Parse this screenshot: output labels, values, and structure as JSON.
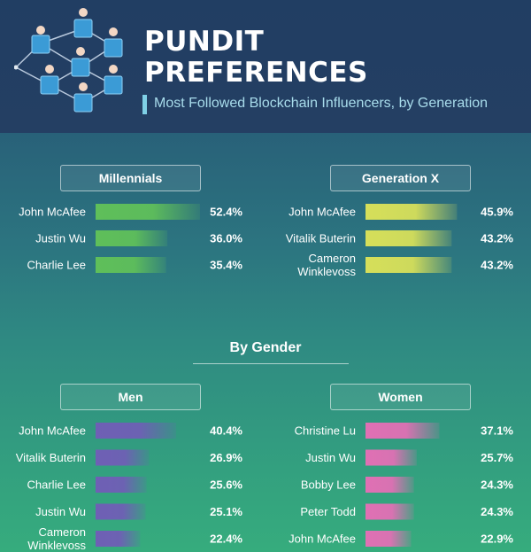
{
  "header": {
    "title_line1": "PUNDIT",
    "title_line2": "PREFERENCES",
    "subtitle": "Most Followed Blockchain Influencers, by Generation"
  },
  "colors": {
    "millennials": "#5fbf5a",
    "generation_x": "#d6df5a",
    "men": "#6f5fb5",
    "women": "#e070b4"
  },
  "by_gender_title": "By Gender",
  "chart_data": [
    {
      "type": "bar",
      "title": "Millennials",
      "categories": [
        "John McAfee",
        "Justin Wu",
        "Charlie Lee"
      ],
      "values": [
        52.4,
        36.0,
        35.4
      ],
      "value_labels": [
        "52.4%",
        "36.0%",
        "35.4%"
      ]
    },
    {
      "type": "bar",
      "title": "Generation X",
      "categories": [
        "John McAfee",
        "Vitalik Buterin",
        "Cameron Winklevoss"
      ],
      "values": [
        45.9,
        43.2,
        43.2
      ],
      "value_labels": [
        "45.9%",
        "43.2%",
        "43.2%"
      ]
    },
    {
      "type": "bar",
      "title": "Men",
      "categories": [
        "John McAfee",
        "Vitalik Buterin",
        "Charlie Lee",
        "Justin Wu",
        "Cameron Winklevoss"
      ],
      "values": [
        40.4,
        26.9,
        25.6,
        25.1,
        22.4
      ],
      "value_labels": [
        "40.4%",
        "26.9%",
        "25.6%",
        "25.1%",
        "22.4%"
      ]
    },
    {
      "type": "bar",
      "title": "Women",
      "categories": [
        "Christine Lu",
        "Justin Wu",
        "Bobby Lee",
        "Peter Todd",
        "John McAfee"
      ],
      "values": [
        37.1,
        25.7,
        24.3,
        24.3,
        22.9
      ],
      "value_labels": [
        "37.1%",
        "25.7%",
        "24.3%",
        "24.3%",
        "22.9%"
      ]
    }
  ]
}
